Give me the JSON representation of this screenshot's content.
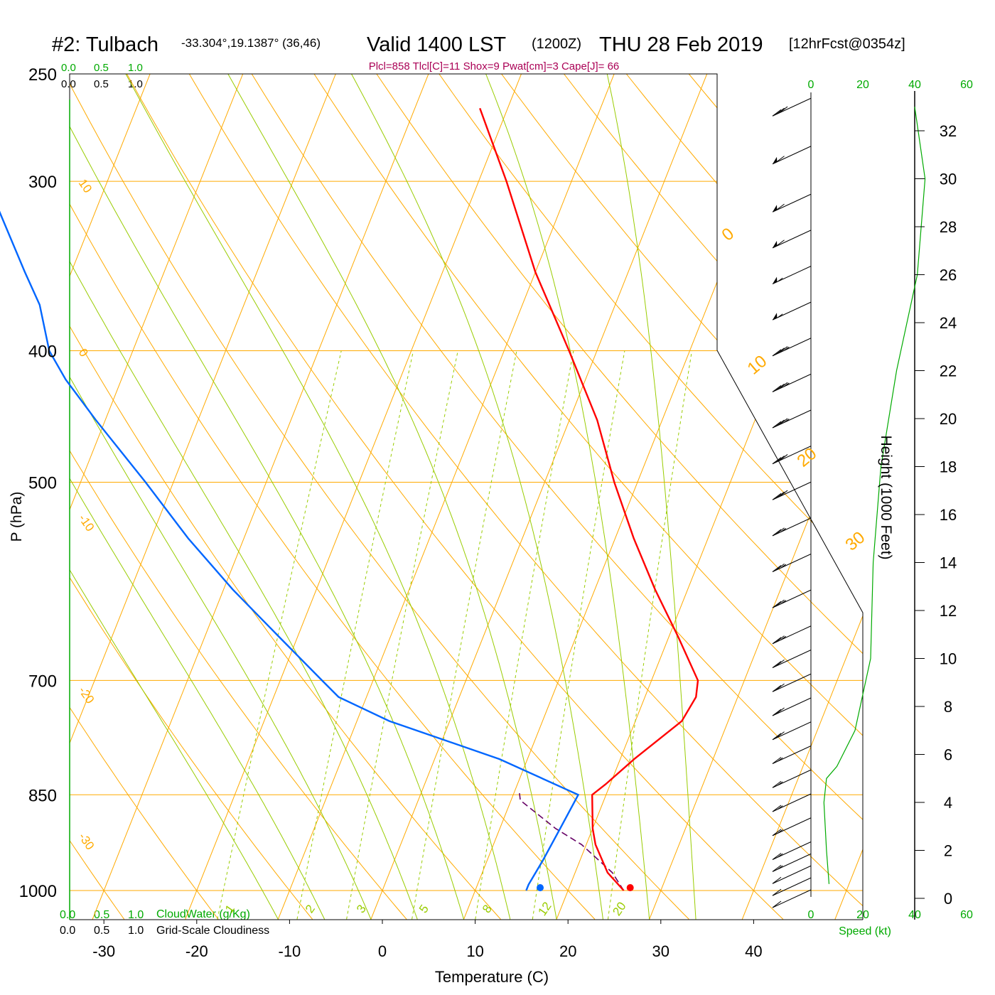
{
  "header": {
    "station": "#2: Tulbach",
    "coords": "-33.304°,19.1387° (36,46)",
    "valid": "Valid 1400 LST",
    "utc": "(1200Z)",
    "date": "THU 28 Feb 2019",
    "forecast": "[12hrFcst@0354z]",
    "params": "Plcl=858 Tlcl[C]=11 Shox=9 Pwat[cm]=3 Cape[J]= 66"
  },
  "scales": {
    "cloudwater_ticks": [
      "0.0",
      "0.5",
      "1.0"
    ],
    "cloudiness_ticks": [
      "0.0",
      "0.5",
      "1.0"
    ],
    "cloudwater_label": "CloudWater (g/Kg)",
    "cloudiness_label": "Grid-Scale Cloudiness",
    "speed_ticks": [
      "0",
      "20",
      "40",
      "60"
    ],
    "speed_label": "Speed (kt)"
  },
  "colors": {
    "temperature": "#ff0000",
    "dewpoint": "#0066ff",
    "parcel": "#660066",
    "isotherm_isobar": "#ffaa00",
    "dry_adiabat": "#ffaa00",
    "moist_adiabat": "#99cc00",
    "mixing_ratio": "#99cc00",
    "green_text": "#00aa00",
    "params_text": "#aa0055"
  },
  "chart_data": {
    "type": "line",
    "title": "#2: Tulbach -33.304°,19.1387° (36,46) Valid 1400 LST (1200Z) THU 28 Feb 2019 [12hrFcst@0354z]",
    "xlabel": "Temperature (C)",
    "ylabel": "P (hPa)",
    "y2label": "Height (1000 Feet)",
    "x_ticks": [
      "-30",
      "-20",
      "-10",
      "0",
      "10",
      "20",
      "30",
      "40"
    ],
    "pressure_ticks": [
      "250",
      "300",
      "400",
      "500",
      "700",
      "850",
      "1000"
    ],
    "height_ticks": [
      "0",
      "2",
      "4",
      "6",
      "8",
      "10",
      "12",
      "14",
      "16",
      "18",
      "20",
      "22",
      "24",
      "26",
      "28",
      "30",
      "32"
    ],
    "isotherm_labels": [
      "10",
      "0",
      "-10",
      "-20",
      "-30"
    ],
    "dry_adiabat_labels": [
      "0",
      "10",
      "20",
      "30"
    ],
    "mixing_ratio_labels": [
      "1",
      "2",
      "3",
      "5",
      "8",
      "12",
      "20"
    ],
    "series": [
      {
        "name": "Temperature",
        "p": [
          1000,
          970,
          925,
          900,
          850,
          835,
          800,
          750,
          720,
          700,
          650,
          600,
          550,
          500,
          450,
          400,
          350,
          300,
          265
        ],
        "t": [
          26,
          23.5,
          21,
          20,
          18.5,
          19.5,
          21.5,
          25,
          25.5,
          25,
          21,
          16.5,
          12,
          7.5,
          3,
          -3,
          -10,
          -17,
          -23
        ]
      },
      {
        "name": "Dewpoint",
        "p": [
          1000,
          990,
          950,
          900,
          850,
          800,
          750,
          720,
          700,
          650,
          600,
          550,
          500,
          450,
          420,
          400,
          370,
          350,
          300,
          265
        ],
        "t": [
          15.5,
          15.5,
          16,
          16.5,
          17,
          7,
          -6.5,
          -13,
          -15.5,
          -22,
          -29,
          -36,
          -43,
          -51,
          -56,
          -59,
          -62,
          -65,
          -73,
          -79
        ]
      },
      {
        "name": "Parcel",
        "p": [
          1000,
          970,
          925,
          900,
          858,
          845
        ],
        "t": [
          26,
          24,
          19.5,
          16,
          11,
          10.5
        ]
      }
    ],
    "surface_points": [
      {
        "name": "Temperature",
        "p": 1000,
        "t": 26.7
      },
      {
        "name": "Dewpoint",
        "p": 1000,
        "t": 17
      }
    ],
    "wind_barbs": [
      {
        "height_kft": 33,
        "speed_kt": 30
      },
      {
        "height_kft": 31,
        "speed_kt": 60
      },
      {
        "height_kft": 29,
        "speed_kt": 60
      },
      {
        "height_kft": 27.5,
        "speed_kt": 60
      },
      {
        "height_kft": 26,
        "speed_kt": 55
      },
      {
        "height_kft": 24.5,
        "speed_kt": 55
      },
      {
        "height_kft": 23,
        "speed_kt": 35
      },
      {
        "height_kft": 21.5,
        "speed_kt": 35
      },
      {
        "height_kft": 20,
        "speed_kt": 35
      },
      {
        "height_kft": 18.5,
        "speed_kt": 30
      },
      {
        "height_kft": 17,
        "speed_kt": 30
      },
      {
        "height_kft": 15.5,
        "speed_kt": 25
      },
      {
        "height_kft": 14,
        "speed_kt": 25
      },
      {
        "height_kft": 12.5,
        "speed_kt": 25
      },
      {
        "height_kft": 11,
        "speed_kt": 25
      },
      {
        "height_kft": 10,
        "speed_kt": 20
      },
      {
        "height_kft": 9,
        "speed_kt": 20
      },
      {
        "height_kft": 8,
        "speed_kt": 20
      },
      {
        "height_kft": 7,
        "speed_kt": 20
      },
      {
        "height_kft": 6,
        "speed_kt": 15
      },
      {
        "height_kft": 5,
        "speed_kt": 15
      },
      {
        "height_kft": 4,
        "speed_kt": 15
      },
      {
        "height_kft": 3,
        "speed_kt": 15
      },
      {
        "height_kft": 2,
        "speed_kt": 15
      },
      {
        "height_kft": 1.5,
        "speed_kt": 15
      },
      {
        "height_kft": 1,
        "speed_kt": 10
      },
      {
        "height_kft": 0.5,
        "speed_kt": 10
      },
      {
        "height_kft": 0,
        "speed_kt": 10
      }
    ],
    "speed_profile": [
      {
        "height_kft": 0.6,
        "speed_kt": 7
      },
      {
        "height_kft": 2,
        "speed_kt": 6
      },
      {
        "height_kft": 4,
        "speed_kt": 5
      },
      {
        "height_kft": 5,
        "speed_kt": 6
      },
      {
        "height_kft": 5.5,
        "speed_kt": 10
      },
      {
        "height_kft": 7,
        "speed_kt": 17
      },
      {
        "height_kft": 10,
        "speed_kt": 23
      },
      {
        "height_kft": 14,
        "speed_kt": 24
      },
      {
        "height_kft": 18,
        "speed_kt": 27
      },
      {
        "height_kft": 22,
        "speed_kt": 33
      },
      {
        "height_kft": 26,
        "speed_kt": 41
      },
      {
        "height_kft": 30,
        "speed_kt": 44
      },
      {
        "height_kft": 33,
        "speed_kt": 40
      }
    ],
    "ranges": {
      "x": [
        -33,
        36
      ],
      "p": [
        250,
        1000
      ],
      "height_kft": [
        0,
        33
      ],
      "speed_kt": [
        0,
        60
      ]
    }
  }
}
